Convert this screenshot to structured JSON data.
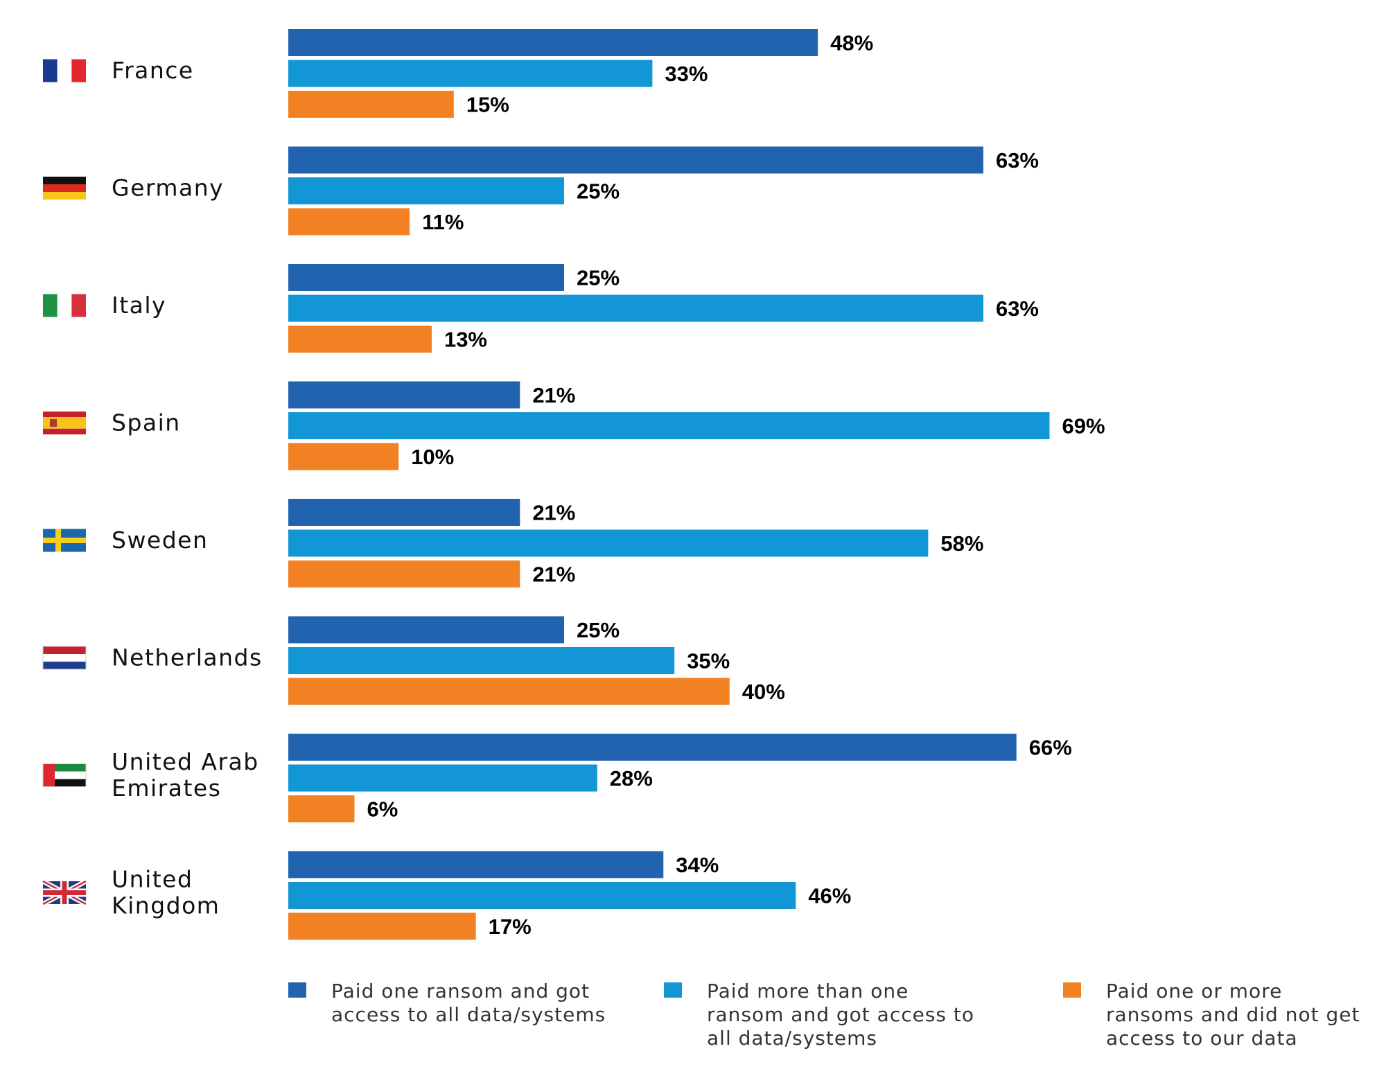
{
  "chart_data": {
    "type": "bar",
    "orientation": "horizontal",
    "grouping": "grouped",
    "title": "",
    "xlabel": "",
    "ylabel": "",
    "xlim": [
      0,
      100
    ],
    "grid": false,
    "legend_position": "bottom",
    "value_format": "percent",
    "categories": [
      {
        "label": "France",
        "flag": "france-flag-icon"
      },
      {
        "label": "Germany",
        "flag": "germany-flag-icon"
      },
      {
        "label": "Italy",
        "flag": "italy-flag-icon"
      },
      {
        "label": "Spain",
        "flag": "spain-flag-icon"
      },
      {
        "label": "Sweden",
        "flag": "sweden-flag-icon"
      },
      {
        "label": "Netherlands",
        "flag": "netherlands-flag-icon"
      },
      {
        "label": "United Arab Emirates",
        "lines": [
          "United Arab",
          "Emirates"
        ],
        "flag": "uae-flag-icon"
      },
      {
        "label": "United Kingdom",
        "lines": [
          "United",
          "Kingdom"
        ],
        "flag": "uk-flag-icon"
      }
    ],
    "series": [
      {
        "name": "Paid one ransom and got access to all data/systems",
        "legend_lines": [
          "Paid one ransom and got",
          "access to all data/systems"
        ],
        "color": "#2263b0",
        "values": [
          48,
          63,
          25,
          21,
          21,
          25,
          66,
          34
        ]
      },
      {
        "name": "Paid more than one ransom and got access to all data/systems",
        "legend_lines": [
          "Paid more than one",
          "ransom and got access to",
          "all data/systems"
        ],
        "color": "#1296d6",
        "values": [
          33,
          25,
          63,
          69,
          58,
          35,
          28,
          46
        ]
      },
      {
        "name": "Paid one or more ransoms and did not get access to our data",
        "legend_lines": [
          "Paid one or more",
          "ransoms and did not get",
          "access to our data"
        ],
        "color": "#f28124",
        "values": [
          15,
          11,
          13,
          10,
          21,
          40,
          6,
          17
        ]
      }
    ]
  }
}
